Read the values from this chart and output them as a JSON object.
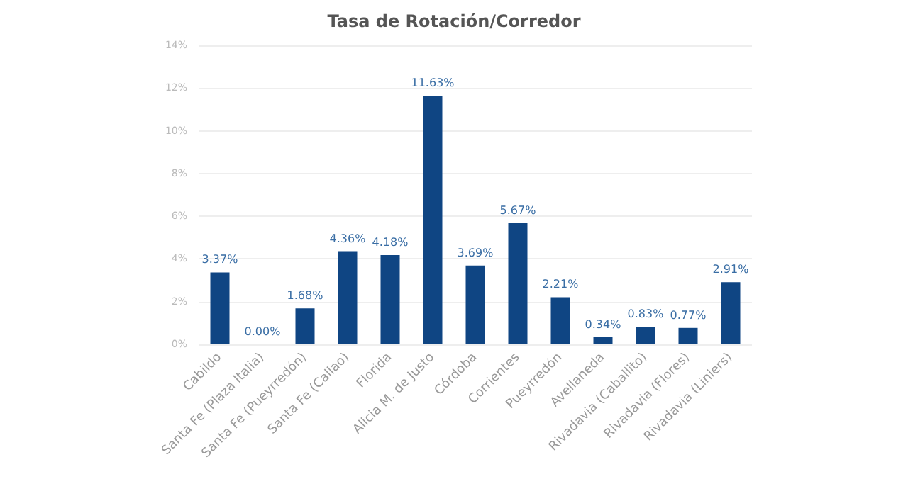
{
  "chart_data": {
    "type": "bar",
    "title": "Tasa de Rotación/Corredor",
    "categories": [
      "Cabildo",
      "Santa Fe (Plaza Italia)",
      "Santa Fe (Pueyrredón)",
      "Santa Fe (Callao)",
      "Florida",
      "Alicia M. de Justo",
      "Córdoba",
      "Corrientes",
      "Pueyrredón",
      "Avellaneda",
      "Rivadavia (Caballito)",
      "Rivadavia (Flores)",
      "Rivadavia (Liniers)"
    ],
    "values": [
      3.37,
      0,
      1.68,
      4.36,
      4.18,
      11.63,
      3.69,
      5.67,
      2.21,
      0.34,
      0.83,
      0.77,
      2.91
    ],
    "value_labels": [
      "3.37%",
      "0.00%",
      "1.68%",
      "4.36%",
      "4.18%",
      "11.63%",
      "3.69%",
      "5.67%",
      "2.21%",
      "0.34%",
      "0.83%",
      "0.77%",
      "2.91%"
    ],
    "color": "#0f4583",
    "ylim": [
      0,
      14
    ],
    "yticks": [
      {
        "value": 0,
        "label": "0%"
      },
      {
        "value": 2,
        "label": "2%"
      },
      {
        "value": 4,
        "label": "4%"
      },
      {
        "value": 6,
        "label": "6%"
      },
      {
        "value": 8,
        "label": "8%"
      },
      {
        "value": 10,
        "label": "10%"
      },
      {
        "value": 12,
        "label": "12%"
      },
      {
        "value": 14,
        "label": "14%"
      }
    ],
    "grid": "y"
  }
}
